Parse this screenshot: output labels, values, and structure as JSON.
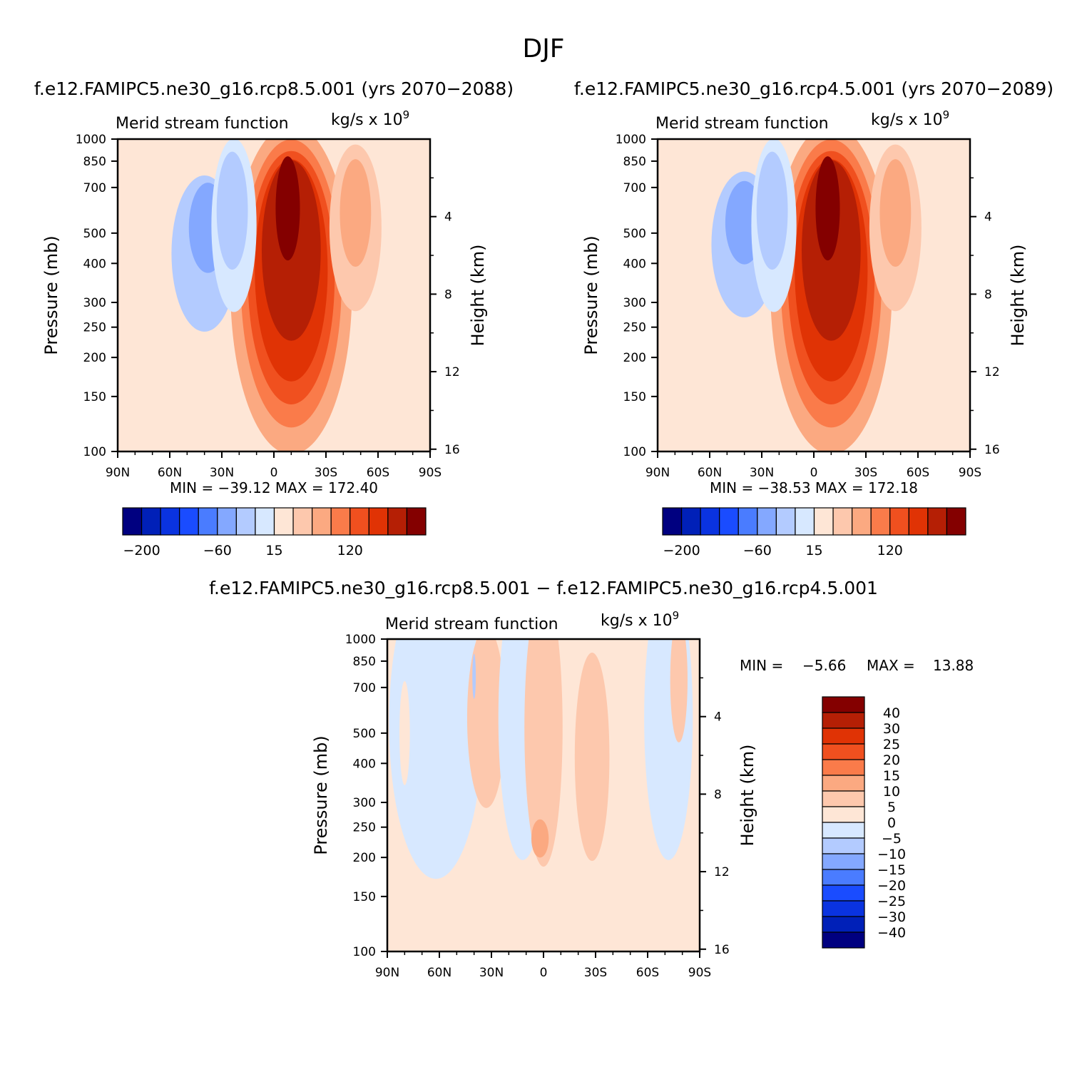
{
  "figure_title": "DJF",
  "chart_data": [
    {
      "id": "p1",
      "type": "contour",
      "case_title": "f.e12.FAMIPC5.ne30_g16.rcp8.5.001 (yrs 2070-2088)",
      "left_title": "Merid stream function",
      "right_title": "kg/s x 10",
      "right_title_exp": "9",
      "ylabel": "Pressure (mb)",
      "ylabel2": "Height (km)",
      "xlabel": "",
      "xlim": [
        90,
        -90
      ],
      "x_ticks": [
        90,
        60,
        30,
        0,
        -30,
        -60,
        -90
      ],
      "x_tick_labels": [
        "90N",
        "60N",
        "30N",
        "0",
        "30S",
        "60S",
        "90S"
      ],
      "y_ticks": [
        100,
        150,
        200,
        250,
        300,
        400,
        500,
        700,
        850,
        1000
      ],
      "y_tick_labels": [
        "100",
        "150",
        "200",
        "250",
        "300",
        "400",
        "500",
        "700",
        "850",
        "1000"
      ],
      "y2_ticks": [
        16,
        12,
        8,
        4
      ],
      "ylim": [
        1000,
        100
      ],
      "min_max_text": "MIN = -39.12   MAX = 172.40",
      "min": -39.12,
      "max": 172.4,
      "contour_levels": [
        -200,
        -150,
        -100,
        -80,
        -60,
        -40,
        -20,
        0,
        15,
        40,
        60,
        80,
        100,
        120,
        150,
        200
      ],
      "colorbar_labels": [
        "-200",
        "-60",
        "15",
        "120"
      ],
      "cells": [
        {
          "lat": 73,
          "p": 640,
          "w": 24,
          "h": 700,
          "level": 0
        },
        {
          "lat": 40,
          "p": 430,
          "w": 19,
          "h": 450,
          "level": -40
        },
        {
          "lat": 38,
          "p": 520,
          "w": 11,
          "h": 260,
          "level": -60
        },
        {
          "lat": -10,
          "p": 330,
          "w": 35,
          "h": 950,
          "level": 40
        },
        {
          "lat": -10,
          "p": 345,
          "w": 29,
          "h": 830,
          "level": 60
        },
        {
          "lat": -10,
          "p": 360,
          "w": 25,
          "h": 730,
          "level": 80
        },
        {
          "lat": -10,
          "p": 380,
          "w": 21,
          "h": 640,
          "level": 100
        },
        {
          "lat": -10,
          "p": 440,
          "w": 17,
          "h": 520,
          "level": 120
        },
        {
          "lat": -8,
          "p": 600,
          "w": 7,
          "h": 300,
          "level": 150
        },
        {
          "lat": 23,
          "p": 530,
          "w": 13,
          "h": 500,
          "level": -20
        },
        {
          "lat": 24,
          "p": 590,
          "w": 9,
          "h": 340,
          "level": -40
        },
        {
          "lat": -47,
          "p": 520,
          "w": 15,
          "h": 480,
          "level": 15
        },
        {
          "lat": -47,
          "p": 580,
          "w": 9,
          "h": 310,
          "level": 40
        }
      ]
    },
    {
      "id": "p2",
      "type": "contour",
      "case_title": "f.e12.FAMIPC5.ne30_g16.rcp4.5.001 (yrs 2070-2089)",
      "left_title": "Merid stream function",
      "right_title": "kg/s x 10",
      "right_title_exp": "9",
      "ylabel": "Pressure (mb)",
      "ylabel2": "Height (km)",
      "xlabel": "",
      "xlim": [
        90,
        -90
      ],
      "x_ticks": [
        90,
        60,
        30,
        0,
        -30,
        -60,
        -90
      ],
      "x_tick_labels": [
        "90N",
        "60N",
        "30N",
        "0",
        "30S",
        "60S",
        "90S"
      ],
      "y_ticks": [
        100,
        150,
        200,
        250,
        300,
        400,
        500,
        700,
        850,
        1000
      ],
      "y_tick_labels": [
        "100",
        "150",
        "200",
        "250",
        "300",
        "400",
        "500",
        "700",
        "850",
        "1000"
      ],
      "y2_ticks": [
        16,
        12,
        8,
        4
      ],
      "ylim": [
        1000,
        100
      ],
      "min_max_text": "MIN = -38.53   MAX = 172.18",
      "min": -38.53,
      "max": 172.18,
      "contour_levels": [
        -200,
        -150,
        -100,
        -80,
        -60,
        -40,
        -20,
        0,
        15,
        40,
        60,
        80,
        100,
        120,
        150,
        200
      ],
      "colorbar_labels": [
        "-200",
        "-60",
        "15",
        "120"
      ],
      "cells": [
        {
          "lat": 73,
          "p": 640,
          "w": 24,
          "h": 700,
          "level": 0
        },
        {
          "lat": 40,
          "p": 460,
          "w": 19,
          "h": 420,
          "level": -40
        },
        {
          "lat": 40,
          "p": 540,
          "w": 11,
          "h": 240,
          "level": -60
        },
        {
          "lat": -10,
          "p": 330,
          "w": 35,
          "h": 950,
          "level": 40
        },
        {
          "lat": -10,
          "p": 345,
          "w": 29,
          "h": 830,
          "level": 60
        },
        {
          "lat": -10,
          "p": 360,
          "w": 25,
          "h": 730,
          "level": 80
        },
        {
          "lat": -10,
          "p": 380,
          "w": 21,
          "h": 640,
          "level": 100
        },
        {
          "lat": -10,
          "p": 440,
          "w": 17,
          "h": 520,
          "level": 120
        },
        {
          "lat": -8,
          "p": 600,
          "w": 7,
          "h": 300,
          "level": 150
        },
        {
          "lat": 23,
          "p": 530,
          "w": 13,
          "h": 500,
          "level": -20
        },
        {
          "lat": 24,
          "p": 590,
          "w": 9,
          "h": 340,
          "level": -40
        },
        {
          "lat": -47,
          "p": 520,
          "w": 15,
          "h": 480,
          "level": 15
        },
        {
          "lat": -47,
          "p": 580,
          "w": 9,
          "h": 310,
          "level": 40
        }
      ]
    },
    {
      "id": "diff",
      "type": "contour",
      "case_title": "f.e12.FAMIPC5.ne30_g16.rcp8.5.001 - f.e12.FAMIPC5.ne30_g16.rcp4.5.001",
      "left_title": "Merid stream function",
      "right_title": "kg/s x 10",
      "right_title_exp": "9",
      "ylabel": "Pressure (mb)",
      "ylabel2": "Height (km)",
      "xlabel": "",
      "xlim": [
        90,
        -90
      ],
      "x_ticks": [
        90,
        60,
        30,
        0,
        -30,
        -60,
        -90
      ],
      "x_tick_labels": [
        "90N",
        "60N",
        "30N",
        "0",
        "30S",
        "60S",
        "90S"
      ],
      "y_ticks": [
        100,
        150,
        200,
        250,
        300,
        400,
        500,
        700,
        850,
        1000
      ],
      "y_tick_labels": [
        "100",
        "150",
        "200",
        "250",
        "300",
        "400",
        "500",
        "700",
        "850",
        "1000"
      ],
      "y2_ticks": [
        16,
        12,
        8,
        4
      ],
      "ylim": [
        1000,
        100
      ],
      "min_label": "MIN =",
      "min_value": "-5.66",
      "max_label": "MAX =",
      "max_value": "13.88",
      "min": -5.66,
      "max": 13.88,
      "contour_levels": [
        -40,
        -30,
        -25,
        -20,
        -15,
        -10,
        -5,
        0,
        5,
        10,
        15,
        20,
        25,
        30,
        40
      ],
      "colorbar_labels": [
        "40",
        "30",
        "25",
        "20",
        "15",
        "10",
        "5",
        "0",
        "-5",
        "-10",
        "-15",
        "-20",
        "-25",
        "-30",
        "-40"
      ],
      "cells": [
        {
          "lat": 62,
          "p": 540,
          "w": 27,
          "h": 900,
          "level": -5
        },
        {
          "lat": 33,
          "p": 560,
          "w": 11,
          "h": 520,
          "level": 5
        },
        {
          "lat": 12,
          "p": 560,
          "w": 14,
          "h": 820,
          "level": -5
        },
        {
          "lat": 0,
          "p": 520,
          "w": 11,
          "h": 800,
          "level": 5
        },
        {
          "lat": 2,
          "p": 230,
          "w": 5,
          "h": 110,
          "level": 10
        },
        {
          "lat": -28,
          "p": 420,
          "w": 10,
          "h": 600,
          "level": 5
        },
        {
          "lat": -72,
          "p": 560,
          "w": 14,
          "h": 820,
          "level": -5
        },
        {
          "lat": -78,
          "p": 740,
          "w": 5,
          "h": 360,
          "level": 5
        },
        {
          "lat": 40,
          "p": 760,
          "w": 1,
          "h": 130,
          "level": -10
        },
        {
          "lat": 80,
          "p": 500,
          "w": 3,
          "h": 300,
          "level": 0
        }
      ]
    }
  ]
}
